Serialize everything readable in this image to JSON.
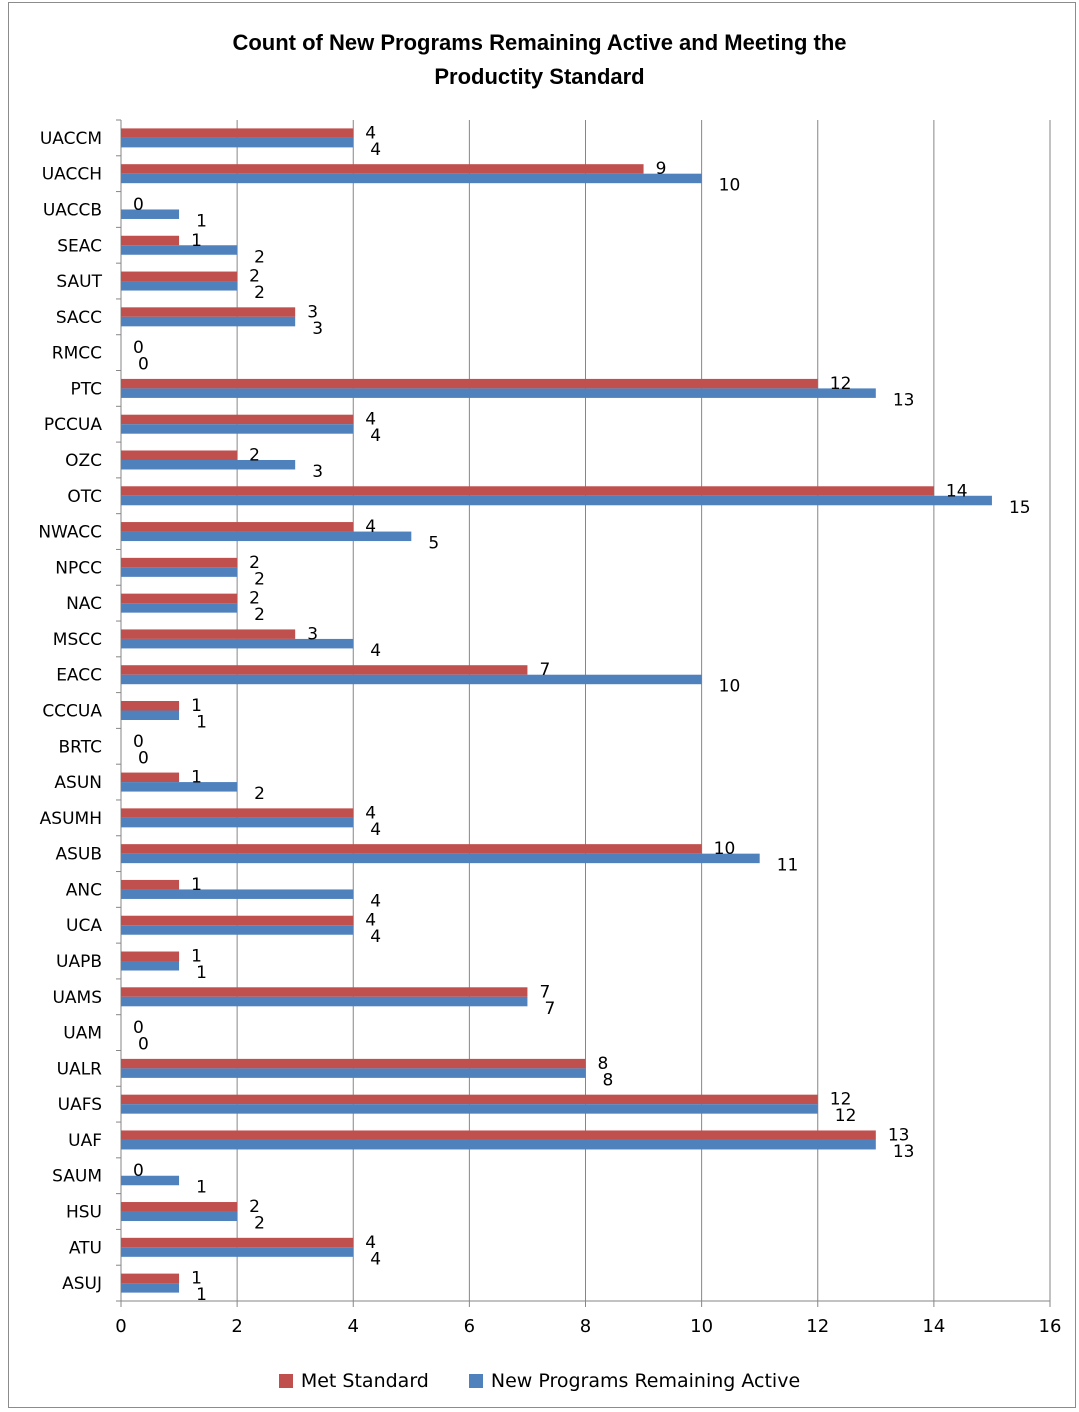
{
  "chart_data": {
    "type": "bar",
    "orientation": "horizontal",
    "title_lines": [
      "Count of New Programs Remaining Active and Meeting the",
      "Productity Standard"
    ],
    "categories": [
      "UACCM",
      "UACCH",
      "UACCB",
      "SEAC",
      "SAUT",
      "SACC",
      "RMCC",
      "PTC",
      "PCCUA",
      "OZC",
      "OTC",
      "NWACC",
      "NPCC",
      "NAC",
      "MSCC",
      "EACC",
      "CCCUA",
      "BRTC",
      "ASUN",
      "ASUMH",
      "ASUB",
      "ANC",
      "UCA",
      "UAPB",
      "UAMS",
      "UAM",
      "UALR",
      "UAFS",
      "UAF",
      "SAUM",
      "HSU",
      "ATU",
      "ASUJ"
    ],
    "series": [
      {
        "name": "Met Standard",
        "color": "#c0504d",
        "values": [
          4,
          9,
          0,
          1,
          2,
          3,
          0,
          12,
          4,
          2,
          14,
          4,
          2,
          2,
          3,
          7,
          1,
          0,
          1,
          4,
          10,
          1,
          4,
          1,
          7,
          0,
          8,
          12,
          13,
          0,
          2,
          4,
          1
        ]
      },
      {
        "name": "New Programs Remaining Active",
        "color": "#4f81bd",
        "values": [
          4,
          10,
          1,
          2,
          2,
          3,
          0,
          13,
          4,
          3,
          15,
          5,
          2,
          2,
          4,
          10,
          1,
          0,
          2,
          4,
          11,
          4,
          4,
          1,
          7,
          0,
          8,
          12,
          13,
          1,
          2,
          4,
          1
        ]
      }
    ],
    "x_ticks": [
      "0",
      "2",
      "4",
      "6",
      "8",
      "10",
      "12",
      "14",
      "16"
    ],
    "xlim": [
      0,
      16
    ],
    "grid": "vertical",
    "legend_position": "bottom"
  },
  "legend": {
    "met_label": "Met Standard",
    "active_label": "New Programs Remaining Active"
  }
}
